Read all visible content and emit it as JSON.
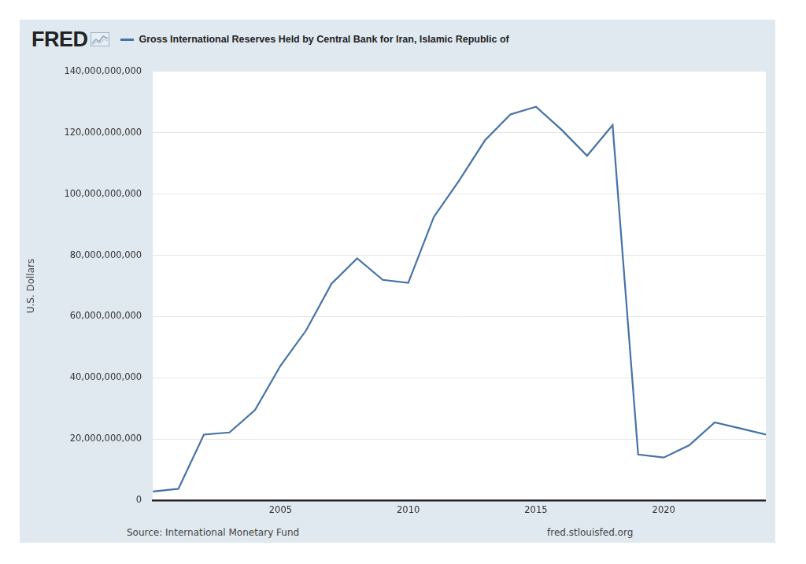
{
  "chart_data": {
    "type": "line",
    "logo": "FRED",
    "title": "Gross International Reserves Held by Central Bank for Iran, Islamic Republic of",
    "y_label": "U.S. Dollars",
    "source": "Source: International Monetary Fund",
    "url": "fred.stlouisfed.org",
    "legend": "top-left",
    "grid": true,
    "x": [
      2000,
      2001,
      2002,
      2003,
      2004,
      2005,
      2006,
      2007,
      2008,
      2009,
      2010,
      2011,
      2012,
      2013,
      2014,
      2015,
      2016,
      2017,
      2018,
      2019,
      2020,
      2021,
      2022,
      2023,
      2024
    ],
    "series": [
      {
        "name": "Gross International Reserves Held by Central Bank for Iran, Islamic Republic of",
        "color": "#4572a7",
        "values": [
          2900000000,
          3800000000,
          21500000000,
          22200000000,
          29500000000,
          44000000000,
          55500000000,
          70800000000,
          79000000000,
          72000000000,
          71000000000,
          92500000000,
          104500000000,
          117500000000,
          126000000000,
          128500000000,
          121000000000,
          112500000000,
          122500000000,
          15000000000,
          14000000000,
          18000000000,
          25500000000,
          23500000000,
          21500000000
        ]
      }
    ],
    "xlim": [
      2000,
      2024
    ],
    "xticks": [
      2005,
      2010,
      2015,
      2020
    ],
    "ylim": [
      0,
      140000000000
    ],
    "yticks": [
      0,
      {
        "value": 20000000000,
        "label": "20,000,000,000"
      },
      {
        "value": 40000000000,
        "label": "40,000,000,000"
      },
      {
        "value": 60000000000,
        "label": "60,000,000,000"
      },
      {
        "value": 80000000000,
        "label": "80,000,000,000"
      },
      {
        "value": 100000000000,
        "label": "100,000,000,000"
      },
      {
        "value": 120000000000,
        "label": "120,000,000,000"
      },
      {
        "value": 140000000000,
        "label": "140,000,000,000"
      }
    ]
  }
}
